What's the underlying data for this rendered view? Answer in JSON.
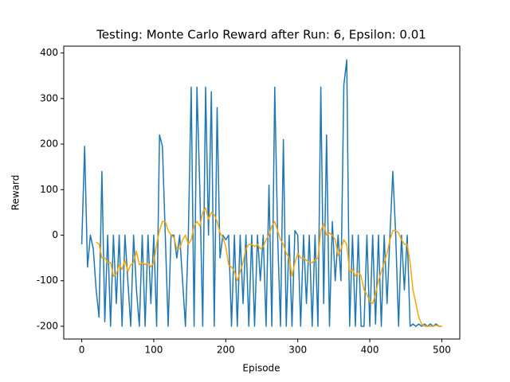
{
  "chart_data": {
    "type": "line",
    "title": "Testing: Monte Carlo Reward after Run: 6, Epsilon: 0.01",
    "x_label": "Episode",
    "y_label": "Reward",
    "x": [
      0,
      4,
      8,
      12,
      16,
      20,
      24,
      28,
      32,
      36,
      40,
      44,
      48,
      52,
      56,
      60,
      64,
      68,
      72,
      76,
      80,
      84,
      88,
      92,
      96,
      100,
      104,
      108,
      112,
      116,
      120,
      124,
      128,
      132,
      136,
      140,
      144,
      148,
      152,
      156,
      160,
      164,
      168,
      172,
      176,
      180,
      184,
      188,
      192,
      196,
      200,
      204,
      208,
      212,
      216,
      220,
      224,
      228,
      232,
      236,
      240,
      244,
      248,
      252,
      256,
      260,
      264,
      268,
      272,
      276,
      280,
      284,
      288,
      292,
      296,
      300,
      304,
      308,
      312,
      316,
      320,
      324,
      328,
      332,
      336,
      340,
      344,
      348,
      352,
      356,
      360,
      364,
      368,
      372,
      376,
      380,
      384,
      388,
      392,
      396,
      400,
      404,
      408,
      412,
      416,
      420,
      424,
      428,
      432,
      436,
      440,
      444,
      448,
      452,
      456,
      460,
      464,
      468,
      472,
      476,
      480,
      484,
      488,
      492,
      496,
      500
    ],
    "series": [
      {
        "color": "#1f77b4",
        "values": [
          -20,
          195,
          -70,
          0,
          -30,
          -120,
          -180,
          140,
          -190,
          0,
          -200,
          0,
          -150,
          0,
          -200,
          0,
          -100,
          -200,
          0,
          -120,
          -200,
          0,
          -200,
          0,
          -150,
          0,
          -200,
          220,
          195,
          0,
          -200,
          0,
          0,
          -50,
          0,
          -100,
          -200,
          0,
          325,
          -200,
          325,
          100,
          -200,
          325,
          0,
          315,
          -200,
          280,
          -50,
          0,
          -10,
          0,
          -200,
          0,
          -200,
          0,
          -150,
          0,
          -200,
          0,
          -200,
          0,
          -100,
          0,
          -200,
          110,
          -200,
          325,
          0,
          -200,
          210,
          -200,
          0,
          -200,
          10,
          0,
          -200,
          0,
          -150,
          0,
          -200,
          0,
          -200,
          325,
          -150,
          220,
          -200,
          30,
          -100,
          0,
          -100,
          330,
          385,
          -200,
          0,
          -200,
          0,
          -200,
          -200,
          0,
          -200,
          0,
          -195,
          0,
          -200,
          0,
          -150,
          0,
          140,
          0,
          -200,
          0,
          -120,
          0,
          -200,
          -195,
          -200,
          -195,
          -200,
          -195,
          -200,
          -195,
          -200,
          -195,
          -200,
          -200
        ]
      },
      {
        "color": "#ffa500",
        "values": [
          null,
          null,
          null,
          null,
          null,
          -15,
          -20,
          -50,
          -50,
          -60,
          -60,
          -90,
          -85,
          -65,
          -75,
          -55,
          -80,
          -65,
          -60,
          -35,
          -65,
          -60,
          -65,
          -60,
          -70,
          -60,
          -20,
          10,
          30,
          30,
          10,
          0,
          -5,
          -30,
          -30,
          -10,
          0,
          -20,
          -10,
          20,
          30,
          20,
          50,
          60,
          35,
          50,
          45,
          30,
          5,
          -5,
          -25,
          -65,
          -70,
          -80,
          -100,
          -80,
          -60,
          -30,
          -20,
          -20,
          -25,
          -20,
          -30,
          -25,
          -10,
          0,
          20,
          30,
          10,
          -10,
          -20,
          -40,
          -50,
          -90,
          -60,
          -40,
          -50,
          -50,
          -55,
          -60,
          -60,
          -55,
          -50,
          10,
          25,
          0,
          5,
          0,
          -10,
          -45,
          -30,
          -10,
          -20,
          -80,
          -75,
          -90,
          -80,
          -90,
          -120,
          -130,
          -145,
          -150,
          -130,
          -100,
          -80,
          -60,
          -40,
          -10,
          10,
          10,
          5,
          -10,
          -20,
          -20,
          -60,
          -120,
          -150,
          -180,
          -195,
          -200,
          -200,
          -200,
          -200,
          -198,
          -200,
          -200
        ]
      }
    ],
    "xlim": [
      -25,
      525
    ],
    "ylim": [
      -228,
      415
    ],
    "xticks": [
      0,
      100,
      200,
      300,
      400,
      500
    ],
    "yticks": [
      -200,
      -100,
      0,
      100,
      200,
      300,
      400
    ]
  }
}
